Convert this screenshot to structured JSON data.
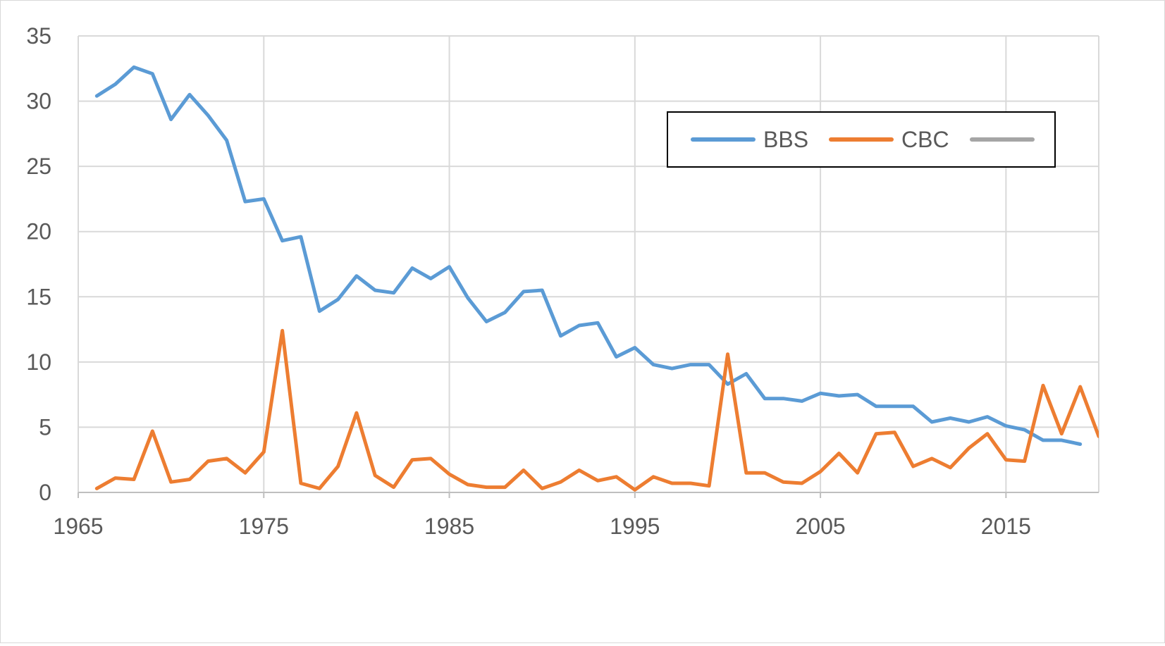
{
  "chart_data": {
    "type": "line",
    "title": "",
    "xlabel": "",
    "ylabel": "",
    "xlim": [
      1965,
      2020
    ],
    "ylim": [
      0,
      35
    ],
    "x_ticks": [
      1965,
      1975,
      1985,
      1995,
      2005,
      2015
    ],
    "x_tick_labels": [
      "1965",
      "1975",
      "1985",
      "1995",
      "2005",
      "2015"
    ],
    "y_ticks": [
      0,
      5,
      10,
      15,
      20,
      25,
      30,
      35
    ],
    "y_tick_labels": [
      "0",
      "5",
      "10",
      "15",
      "20",
      "25",
      "30",
      "35"
    ],
    "grid": true,
    "legend": {
      "placement": "top-right",
      "entries": [
        {
          "label": "BBS",
          "color": "#5b9bd5"
        },
        {
          "label": "CBC",
          "color": "#ed7d31"
        },
        {
          "label": "",
          "color": "#a5a5a5"
        }
      ]
    },
    "series": [
      {
        "name": "BBS",
        "color": "#5b9bd5",
        "x": [
          1966,
          1967,
          1968,
          1969,
          1970,
          1971,
          1972,
          1973,
          1974,
          1975,
          1976,
          1977,
          1978,
          1979,
          1980,
          1981,
          1982,
          1983,
          1984,
          1985,
          1986,
          1987,
          1988,
          1989,
          1990,
          1991,
          1992,
          1993,
          1994,
          1995,
          1996,
          1997,
          1998,
          1999,
          2000,
          2001,
          2002,
          2003,
          2004,
          2005,
          2006,
          2007,
          2008,
          2009,
          2010,
          2011,
          2012,
          2013,
          2014,
          2015,
          2016,
          2017,
          2018,
          2019
        ],
        "values": [
          30.4,
          31.3,
          32.6,
          32.1,
          28.6,
          30.5,
          28.9,
          27.0,
          22.3,
          22.5,
          19.3,
          19.6,
          13.9,
          14.8,
          16.6,
          15.5,
          15.3,
          17.2,
          16.4,
          17.3,
          14.9,
          13.1,
          13.8,
          15.4,
          15.5,
          12.0,
          12.8,
          13.0,
          10.4,
          11.1,
          9.8,
          9.5,
          9.8,
          9.8,
          8.3,
          9.1,
          7.2,
          7.2,
          7.0,
          7.6,
          7.4,
          7.5,
          6.6,
          6.6,
          6.6,
          5.4,
          5.7,
          5.4,
          5.8,
          5.1,
          4.8,
          4.0,
          4.0,
          3.7
        ]
      },
      {
        "name": "CBC",
        "color": "#ed7d31",
        "x": [
          1966,
          1967,
          1968,
          1969,
          1970,
          1971,
          1972,
          1973,
          1974,
          1975,
          1976,
          1977,
          1978,
          1979,
          1980,
          1981,
          1982,
          1983,
          1984,
          1985,
          1986,
          1987,
          1988,
          1989,
          1990,
          1991,
          1992,
          1993,
          1994,
          1995,
          1996,
          1997,
          1998,
          1999,
          2000,
          2001,
          2002,
          2003,
          2004,
          2005,
          2006,
          2007,
          2008,
          2009,
          2010,
          2011,
          2012,
          2013,
          2014,
          2015,
          2016,
          2017,
          2018,
          2019,
          2020
        ],
        "values": [
          0.3,
          1.1,
          1.0,
          4.7,
          0.8,
          1.0,
          2.4,
          2.6,
          1.5,
          3.1,
          12.4,
          0.7,
          0.3,
          2.0,
          6.1,
          1.3,
          0.4,
          2.5,
          2.6,
          1.4,
          0.6,
          0.4,
          0.4,
          1.7,
          0.3,
          0.8,
          1.7,
          0.9,
          1.2,
          0.2,
          1.2,
          0.7,
          0.7,
          0.5,
          10.6,
          1.5,
          1.5,
          0.8,
          0.7,
          1.6,
          3.0,
          1.5,
          4.5,
          4.6,
          2.0,
          2.6,
          1.9,
          3.4,
          4.5,
          2.5,
          2.4,
          8.2,
          4.5,
          8.1,
          4.3
        ]
      }
    ]
  }
}
